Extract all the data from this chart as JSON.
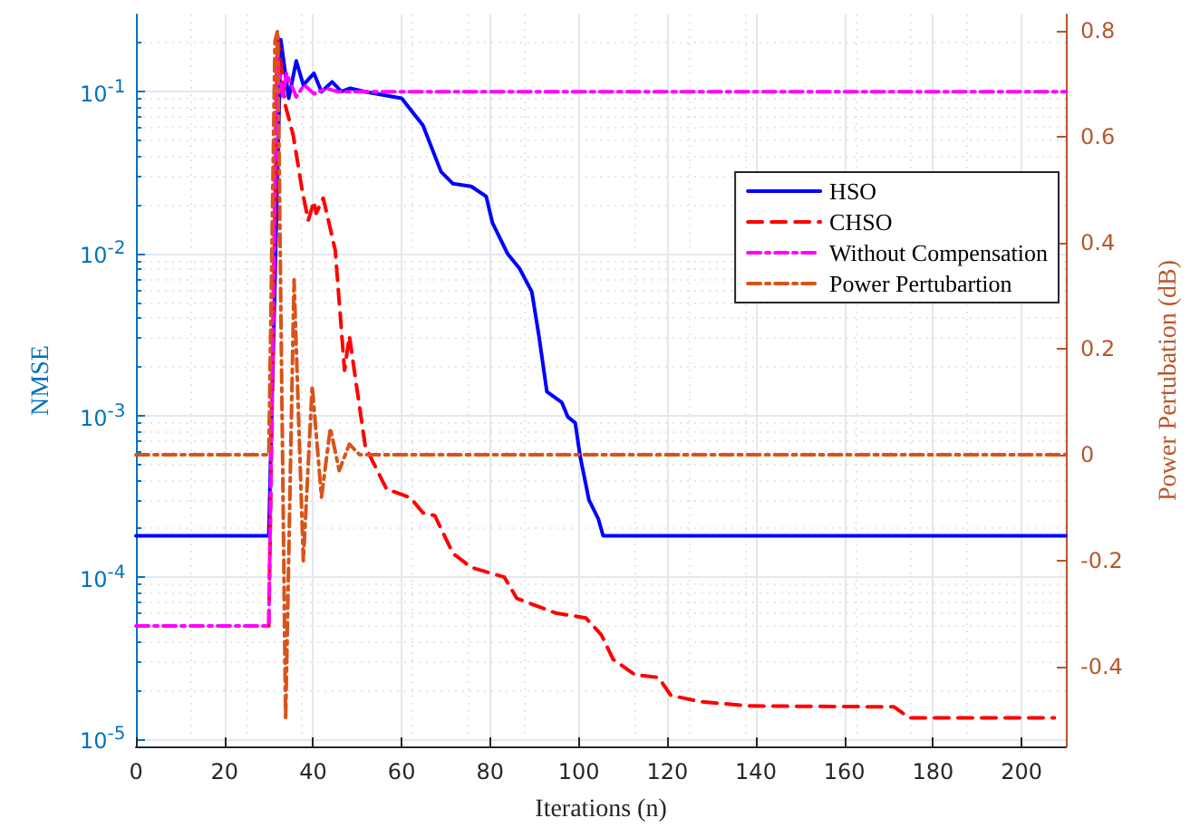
{
  "chart_data": {
    "type": "line",
    "xlabel": "Iterations (n)",
    "ylabel": "NMSE",
    "y2label": "Power Pertubation (dB)",
    "xlim": [
      0,
      210
    ],
    "xticks": [
      0,
      20,
      40,
      60,
      80,
      100,
      120,
      140,
      160,
      180,
      200
    ],
    "ylim": [
      9e-06,
      0.3
    ],
    "log": "y",
    "yticks": [
      {
        "value": 1e-05,
        "label": "10$^{-5}$"
      },
      {
        "value": 0.0001,
        "label": "10$^{-4}$"
      },
      {
        "value": 0.001,
        "label": "10$^{-3}$"
      },
      {
        "value": 0.01,
        "label": "10$^{-2}$"
      },
      {
        "value": 0.1,
        "label": "10$^{-1}$"
      }
    ],
    "y2lim": [
      -0.55,
      0.83
    ],
    "y2ticks": [
      -0.4,
      -0.2,
      0,
      0.2,
      0.4,
      0.6,
      0.8
    ],
    "grid": true,
    "legend": "right",
    "marker": "none",
    "series": [
      {
        "name": "HSO",
        "color": "#0000ff",
        "line_style": "solid",
        "x": [
          0,
          30,
          32.7,
          34.5,
          36.2,
          37.8,
          40.2,
          41.9,
          44.3,
          46.4,
          48.4,
          51.7,
          60,
          64.8,
          68.9,
          71.6,
          75.7,
          79.1,
          80.5,
          83.9,
          86.6,
          89.4,
          91,
          92.8,
          96.2,
          97.5,
          99.2,
          100.3,
          102.3,
          104.4,
          105.5,
          210
        ],
        "values": [
          0.00018,
          0.00018,
          0.21,
          0.091,
          0.155,
          0.11,
          0.13,
          0.1,
          0.115,
          0.1,
          0.105,
          0.1,
          0.091,
          0.062,
          0.032,
          0.027,
          0.026,
          0.0225,
          0.0155,
          0.01,
          0.0081,
          0.0058,
          0.0031,
          0.0014,
          0.0012,
          0.00098,
          0.0009,
          0.00056,
          0.0003,
          0.00023,
          0.00018,
          0.00018
        ]
      },
      {
        "name": "CHSO",
        "color": "#ff0000",
        "line_style": "dashed",
        "x": [
          30,
          32,
          33.7,
          35.5,
          37.5,
          38.9,
          40.2,
          40.7,
          42.3,
          45,
          47.1,
          48.2,
          49.3,
          51.8,
          56.6,
          62,
          64.8,
          67.5,
          71.6,
          75.7,
          83.2,
          86,
          94.8,
          101.6,
          105.1,
          107.8,
          112.6,
          118,
          120.8,
          127.6,
          138.5,
          171.2,
          174.7,
          207.4
        ],
        "values": [
          5e-05,
          0.22,
          0.083,
          0.054,
          0.025,
          0.016,
          0.021,
          0.0177,
          0.022,
          0.0105,
          0.0019,
          0.0031,
          0.0019,
          0.00064,
          0.00035,
          0.00031,
          0.00025,
          0.00024,
          0.00014,
          0.000115,
          0.0001,
          7.4e-05,
          6e-05,
          5.6e-05,
          4.4e-05,
          3.1e-05,
          2.5e-05,
          2.4e-05,
          1.86e-05,
          1.7e-05,
          1.6e-05,
          1.58e-05,
          1.35e-05,
          1.35e-05
        ]
      },
      {
        "name": "Without Compensation",
        "color": "#ff00ff",
        "line_style": "dashdot",
        "x": [
          0,
          30,
          31.8,
          33.2,
          34,
          36.2,
          38,
          40.2,
          43,
          45.6,
          210
        ],
        "values": [
          5e-05,
          5e-05,
          0.17,
          0.091,
          0.13,
          0.093,
          0.11,
          0.097,
          0.105,
          0.1,
          0.1
        ]
      },
      {
        "name": "Power Pertubartion",
        "color": "#d95319",
        "line_style": "dashdot",
        "axis": "y2",
        "x": [
          0,
          30,
          31.4,
          32,
          33.8,
          35.7,
          37.8,
          39.8,
          41.9,
          43.9,
          45.9,
          48.2,
          50.5,
          210
        ],
        "values": [
          0,
          0,
          0.78,
          0.8,
          -0.5,
          0.33,
          -0.2,
          0.13,
          -0.08,
          0.05,
          -0.03,
          0.02,
          0,
          0
        ]
      }
    ]
  }
}
